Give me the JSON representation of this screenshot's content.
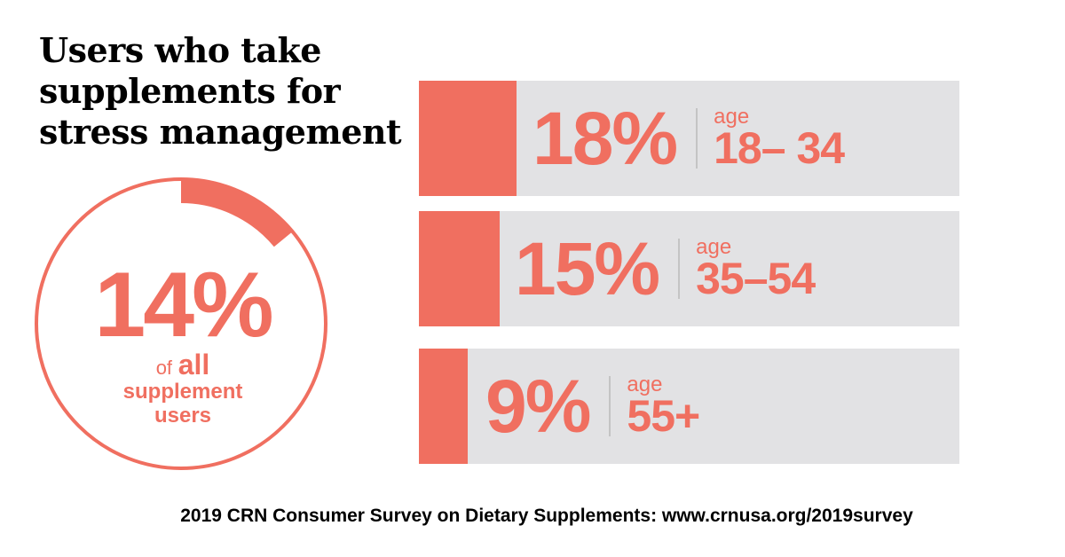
{
  "title": "Users who take supplements for stress management",
  "accent_color": "#f06f60",
  "track_color": "#e2e2e4",
  "overall": {
    "percent_label": "14%",
    "value": 14,
    "caption_of": "of",
    "caption_all": "all",
    "caption_rest": "supplement users"
  },
  "chart_data": {
    "type": "bar",
    "categories": [
      "18– 34",
      "35–54",
      "55+"
    ],
    "values": [
      18,
      15,
      9
    ],
    "value_labels": [
      "18%",
      "15%",
      "9%"
    ],
    "category_prefix": "age",
    "xlim": [
      0,
      100
    ]
  },
  "footnote": "2019 CRN Consumer Survey on Dietary Supplements: www.crnusa.org/2019survey"
}
